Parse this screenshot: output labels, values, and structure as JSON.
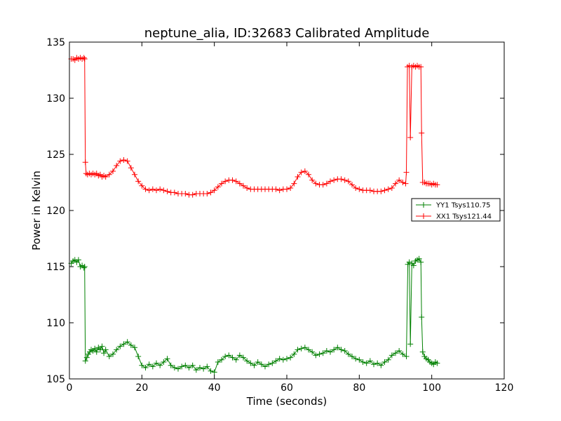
{
  "chart_data": {
    "type": "line",
    "title": "neptune_alia, ID:32683 Calibrated Amplitude",
    "xlabel": "Time (seconds)",
    "ylabel": "Power in Kelvin",
    "xlim": [
      0,
      120
    ],
    "ylim": [
      105,
      135
    ],
    "xticks": [
      "0",
      "20",
      "40",
      "60",
      "80",
      "100",
      "120"
    ],
    "yticks": [
      "105",
      "110",
      "115",
      "120",
      "125",
      "130",
      "135"
    ],
    "grid": false,
    "legend_position": "right",
    "marker": "+",
    "series": [
      {
        "name": "YY1 Tsys110.75",
        "color": "#008000",
        "points": [
          [
            0.5,
            115.3
          ],
          [
            1.0,
            115.5
          ],
          [
            1.5,
            115.6
          ],
          [
            2.0,
            115.4
          ],
          [
            2.5,
            115.6
          ],
          [
            3.0,
            115.0
          ],
          [
            3.5,
            115.1
          ],
          [
            4.0,
            114.9
          ],
          [
            4.2,
            115.0
          ],
          [
            4.4,
            106.6
          ],
          [
            4.8,
            106.9
          ],
          [
            5.2,
            107.2
          ],
          [
            5.6,
            107.4
          ],
          [
            6.0,
            107.6
          ],
          [
            6.5,
            107.5
          ],
          [
            7.0,
            107.7
          ],
          [
            7.5,
            107.4
          ],
          [
            8.0,
            107.8
          ],
          [
            8.5,
            107.6
          ],
          [
            9.0,
            107.9
          ],
          [
            9.5,
            107.3
          ],
          [
            10.0,
            107.6
          ],
          [
            11,
            107.0
          ],
          [
            12,
            107.2
          ],
          [
            13,
            107.6
          ],
          [
            14,
            107.9
          ],
          [
            15,
            108.1
          ],
          [
            16,
            108.3
          ],
          [
            17,
            108.0
          ],
          [
            18,
            107.8
          ],
          [
            19,
            107.0
          ],
          [
            20,
            106.2
          ],
          [
            21,
            106.0
          ],
          [
            22,
            106.3
          ],
          [
            23,
            106.1
          ],
          [
            24,
            106.4
          ],
          [
            25,
            106.2
          ],
          [
            26,
            106.5
          ],
          [
            27,
            106.8
          ],
          [
            28,
            106.2
          ],
          [
            29,
            106.0
          ],
          [
            30,
            105.9
          ],
          [
            31,
            106.1
          ],
          [
            32,
            106.2
          ],
          [
            33,
            106.0
          ],
          [
            34,
            106.2
          ],
          [
            35,
            105.8
          ],
          [
            36,
            106.0
          ],
          [
            37,
            105.9
          ],
          [
            38,
            106.1
          ],
          [
            39,
            105.7
          ],
          [
            40,
            105.6
          ],
          [
            41,
            106.5
          ],
          [
            42,
            106.7
          ],
          [
            43,
            107.0
          ],
          [
            44,
            107.1
          ],
          [
            45,
            106.9
          ],
          [
            46,
            106.7
          ],
          [
            47,
            107.1
          ],
          [
            48,
            106.9
          ],
          [
            49,
            106.6
          ],
          [
            50,
            106.4
          ],
          [
            51,
            106.2
          ],
          [
            52,
            106.5
          ],
          [
            53,
            106.3
          ],
          [
            54,
            106.1
          ],
          [
            55,
            106.3
          ],
          [
            56,
            106.4
          ],
          [
            57,
            106.6
          ],
          [
            58,
            106.8
          ],
          [
            59,
            106.7
          ],
          [
            60,
            106.8
          ],
          [
            61,
            106.9
          ],
          [
            62,
            107.2
          ],
          [
            63,
            107.6
          ],
          [
            64,
            107.7
          ],
          [
            65,
            107.8
          ],
          [
            66,
            107.6
          ],
          [
            67,
            107.4
          ],
          [
            68,
            107.1
          ],
          [
            69,
            107.2
          ],
          [
            70,
            107.3
          ],
          [
            71,
            107.5
          ],
          [
            72,
            107.4
          ],
          [
            73,
            107.6
          ],
          [
            74,
            107.8
          ],
          [
            75,
            107.6
          ],
          [
            76,
            107.5
          ],
          [
            77,
            107.2
          ],
          [
            78,
            107.0
          ],
          [
            79,
            106.8
          ],
          [
            80,
            106.7
          ],
          [
            81,
            106.5
          ],
          [
            82,
            106.4
          ],
          [
            83,
            106.6
          ],
          [
            84,
            106.3
          ],
          [
            85,
            106.4
          ],
          [
            86,
            106.2
          ],
          [
            87,
            106.5
          ],
          [
            88,
            106.7
          ],
          [
            89,
            107.1
          ],
          [
            90,
            107.3
          ],
          [
            91,
            107.5
          ],
          [
            92,
            107.2
          ],
          [
            93,
            107.0
          ],
          [
            93.4,
            115.2
          ],
          [
            93.8,
            115.4
          ],
          [
            94.1,
            108.1
          ],
          [
            94.5,
            115.3
          ],
          [
            95,
            115.1
          ],
          [
            95.5,
            115.5
          ],
          [
            96,
            115.6
          ],
          [
            96.5,
            115.7
          ],
          [
            97,
            115.4
          ],
          [
            97.2,
            110.5
          ],
          [
            97.5,
            107.4
          ],
          [
            98,
            107.0
          ],
          [
            98.5,
            106.8
          ],
          [
            99,
            106.7
          ],
          [
            99.5,
            106.5
          ],
          [
            100,
            106.4
          ],
          [
            100.5,
            106.3
          ],
          [
            101,
            106.5
          ],
          [
            101.5,
            106.4
          ]
        ]
      },
      {
        "name": "XX1 Tsys121.44",
        "color": "#ff0000",
        "points": [
          [
            0.5,
            133.5
          ],
          [
            1.0,
            133.5
          ],
          [
            1.5,
            133.4
          ],
          [
            2.0,
            133.6
          ],
          [
            2.5,
            133.5
          ],
          [
            3.0,
            133.6
          ],
          [
            3.5,
            133.5
          ],
          [
            4.0,
            133.6
          ],
          [
            4.2,
            133.5
          ],
          [
            4.4,
            124.3
          ],
          [
            4.6,
            123.3
          ],
          [
            5.0,
            123.2
          ],
          [
            5.5,
            123.3
          ],
          [
            6.0,
            123.2
          ],
          [
            6.5,
            123.3
          ],
          [
            7.0,
            123.2
          ],
          [
            7.5,
            123.3
          ],
          [
            8.0,
            123.1
          ],
          [
            8.5,
            123.2
          ],
          [
            9.0,
            123.0
          ],
          [
            9.5,
            123.1
          ],
          [
            10.0,
            123.0
          ],
          [
            11,
            123.2
          ],
          [
            12,
            123.5
          ],
          [
            13,
            124.0
          ],
          [
            14,
            124.4
          ],
          [
            15,
            124.5
          ],
          [
            16,
            124.4
          ],
          [
            17,
            123.8
          ],
          [
            18,
            123.2
          ],
          [
            19,
            122.6
          ],
          [
            20,
            122.2
          ],
          [
            21,
            121.9
          ],
          [
            22,
            121.8
          ],
          [
            23,
            121.9
          ],
          [
            24,
            121.8
          ],
          [
            25,
            121.9
          ],
          [
            26,
            121.8
          ],
          [
            27,
            121.7
          ],
          [
            28,
            121.6
          ],
          [
            29,
            121.6
          ],
          [
            30,
            121.5
          ],
          [
            31,
            121.5
          ],
          [
            32,
            121.5
          ],
          [
            33,
            121.4
          ],
          [
            34,
            121.4
          ],
          [
            35,
            121.5
          ],
          [
            36,
            121.5
          ],
          [
            37,
            121.5
          ],
          [
            38,
            121.5
          ],
          [
            39,
            121.6
          ],
          [
            40,
            121.8
          ],
          [
            41,
            122.1
          ],
          [
            42,
            122.4
          ],
          [
            43,
            122.6
          ],
          [
            44,
            122.7
          ],
          [
            45,
            122.7
          ],
          [
            46,
            122.6
          ],
          [
            47,
            122.4
          ],
          [
            48,
            122.2
          ],
          [
            49,
            122.0
          ],
          [
            50,
            121.9
          ],
          [
            51,
            121.9
          ],
          [
            52,
            121.9
          ],
          [
            53,
            121.9
          ],
          [
            54,
            121.9
          ],
          [
            55,
            121.9
          ],
          [
            56,
            121.9
          ],
          [
            57,
            121.9
          ],
          [
            58,
            121.8
          ],
          [
            59,
            121.9
          ],
          [
            60,
            121.9
          ],
          [
            61,
            122.0
          ],
          [
            62,
            122.4
          ],
          [
            63,
            123.0
          ],
          [
            64,
            123.4
          ],
          [
            65,
            123.5
          ],
          [
            66,
            123.2
          ],
          [
            67,
            122.7
          ],
          [
            68,
            122.4
          ],
          [
            69,
            122.3
          ],
          [
            70,
            122.3
          ],
          [
            71,
            122.4
          ],
          [
            72,
            122.6
          ],
          [
            73,
            122.7
          ],
          [
            74,
            122.8
          ],
          [
            75,
            122.8
          ],
          [
            76,
            122.7
          ],
          [
            77,
            122.6
          ],
          [
            78,
            122.3
          ],
          [
            79,
            122.0
          ],
          [
            80,
            121.9
          ],
          [
            81,
            121.8
          ],
          [
            82,
            121.8
          ],
          [
            83,
            121.8
          ],
          [
            84,
            121.7
          ],
          [
            85,
            121.7
          ],
          [
            86,
            121.7
          ],
          [
            87,
            121.8
          ],
          [
            88,
            121.9
          ],
          [
            89,
            122.0
          ],
          [
            90,
            122.4
          ],
          [
            91,
            122.7
          ],
          [
            92,
            122.5
          ],
          [
            92.8,
            122.4
          ],
          [
            93.0,
            123.4
          ],
          [
            93.3,
            132.8
          ],
          [
            93.8,
            132.9
          ],
          [
            94.1,
            126.5
          ],
          [
            94.5,
            132.8
          ],
          [
            95,
            132.9
          ],
          [
            95.5,
            132.8
          ],
          [
            96,
            132.9
          ],
          [
            96.5,
            132.8
          ],
          [
            97,
            132.8
          ],
          [
            97.2,
            126.9
          ],
          [
            97.5,
            122.5
          ],
          [
            98,
            122.5
          ],
          [
            98.5,
            122.4
          ],
          [
            99,
            122.4
          ],
          [
            99.5,
            122.4
          ],
          [
            100,
            122.3
          ],
          [
            100.5,
            122.4
          ],
          [
            101,
            122.3
          ],
          [
            101.5,
            122.3
          ]
        ]
      }
    ]
  }
}
